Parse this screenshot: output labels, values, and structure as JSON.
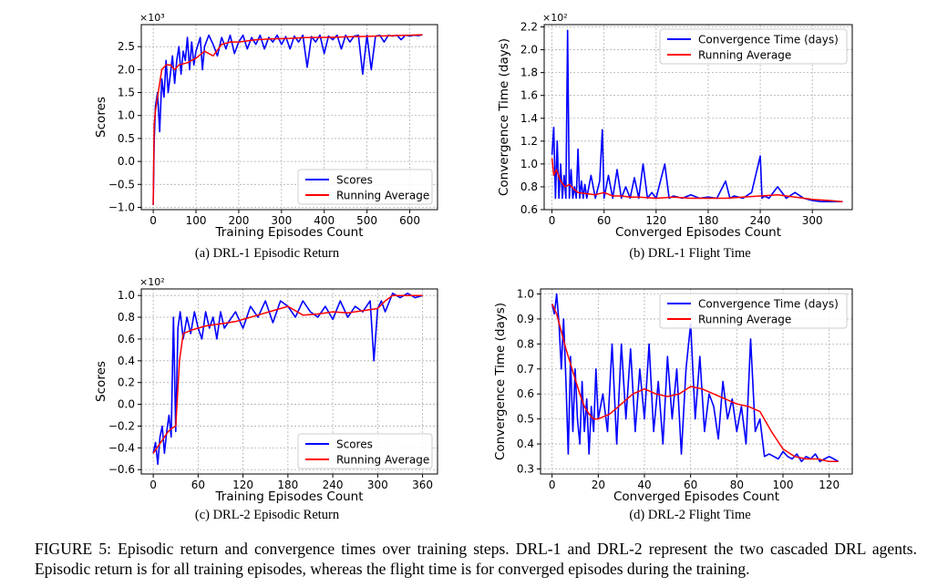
{
  "figure": {
    "caption": "FIGURE 5: Episodic return and convergence times over training steps. DRL-1 and DRL-2 represent the two cascaded DRL agents. Episodic return is for all training episodes, whereas the flight time is for converged episodes during the training."
  },
  "chart_data": [
    {
      "id": "a",
      "type": "line",
      "subcaption": "(a)  DRL-1 Episodic Return",
      "xlabel": "Training Episodes Count",
      "ylabel": "Scores",
      "multiplier": "×10³",
      "xlim": [
        -28,
        665
      ],
      "ylim": [
        -1.05,
        2.98
      ],
      "xticks": [
        0,
        100,
        200,
        300,
        400,
        500,
        600
      ],
      "yticks": [
        -1.0,
        -0.5,
        0.0,
        0.5,
        1.0,
        1.5,
        2.0,
        2.5
      ],
      "ytick_labels": [
        "−1.0",
        "−0.5",
        "0.0",
        "0.5",
        "1.0",
        "1.5",
        "2.0",
        "2.5"
      ],
      "grid": true,
      "legend_position": "bottom-right",
      "series": [
        {
          "name": "Scores",
          "color": "#0000ff",
          "x": [
            0,
            2,
            5,
            10,
            15,
            20,
            25,
            30,
            35,
            40,
            45,
            50,
            55,
            60,
            65,
            70,
            75,
            80,
            85,
            90,
            95,
            100,
            110,
            115,
            120,
            130,
            140,
            150,
            160,
            170,
            180,
            190,
            200,
            210,
            220,
            230,
            240,
            250,
            260,
            270,
            280,
            290,
            300,
            310,
            320,
            330,
            340,
            350,
            360,
            370,
            380,
            390,
            400,
            410,
            420,
            430,
            440,
            450,
            460,
            470,
            480,
            490,
            500,
            510,
            520,
            530,
            540,
            550,
            560,
            570,
            580,
            590,
            600,
            610,
            620,
            630
          ],
          "y": [
            -0.95,
            0.4,
            1.2,
            1.5,
            0.65,
            1.8,
            1.4,
            2.2,
            1.5,
            1.9,
            2.3,
            1.7,
            2.2,
            2.5,
            1.9,
            2.4,
            2.2,
            2.7,
            2.0,
            2.6,
            2.1,
            2.4,
            2.7,
            2.0,
            2.5,
            2.75,
            2.55,
            2.3,
            2.7,
            2.45,
            2.75,
            2.35,
            2.6,
            2.75,
            2.45,
            2.7,
            2.55,
            2.75,
            2.45,
            2.7,
            2.6,
            2.75,
            2.55,
            2.72,
            2.45,
            2.73,
            2.6,
            2.75,
            2.05,
            2.72,
            2.6,
            2.75,
            2.35,
            2.73,
            2.65,
            2.75,
            2.45,
            2.75,
            2.6,
            2.73,
            2.75,
            1.9,
            2.75,
            2.0,
            2.73,
            2.75,
            2.6,
            2.75,
            2.73,
            2.75,
            2.65,
            2.75,
            2.73,
            2.75,
            2.74,
            2.76
          ]
        },
        {
          "name": "Running Average",
          "color": "#ff0000",
          "x": [
            0,
            2,
            5,
            10,
            20,
            30,
            40,
            50,
            60,
            80,
            100,
            120,
            140,
            160,
            180,
            200,
            240,
            280,
            320,
            360,
            400,
            440,
            480,
            520,
            560,
            600,
            630
          ],
          "y": [
            -0.95,
            0.8,
            1.1,
            1.4,
            2.0,
            2.1,
            2.1,
            2.0,
            2.1,
            2.15,
            2.25,
            2.4,
            2.3,
            2.55,
            2.6,
            2.6,
            2.65,
            2.67,
            2.68,
            2.7,
            2.7,
            2.71,
            2.72,
            2.73,
            2.74,
            2.75,
            2.76
          ]
        }
      ]
    },
    {
      "id": "b",
      "type": "line",
      "subcaption": "(b)  DRL-1 Flight Time",
      "xlabel": "Converged Episodes Count",
      "ylabel": "Convergence Time (days)",
      "multiplier": "×10²",
      "xlim": [
        -9,
        346
      ],
      "ylim": [
        0.6,
        2.22
      ],
      "xticks": [
        0,
        60,
        120,
        180,
        240,
        300
      ],
      "yticks": [
        0.6,
        0.8,
        1.0,
        1.2,
        1.4,
        1.6,
        1.8,
        2.0,
        2.2
      ],
      "ytick_labels": [
        "0.6",
        "0.8",
        "1.0",
        "1.2",
        "1.4",
        "1.6",
        "1.8",
        "2.0",
        "2.2"
      ],
      "grid": true,
      "legend_position": "top-right",
      "series": [
        {
          "name": "Convergence Time (days)",
          "color": "#0000ff",
          "x": [
            0,
            2,
            4,
            6,
            8,
            10,
            12,
            14,
            16,
            18,
            20,
            22,
            24,
            26,
            28,
            30,
            32,
            34,
            36,
            38,
            40,
            45,
            50,
            55,
            58,
            60,
            65,
            70,
            75,
            80,
            85,
            90,
            95,
            100,
            105,
            110,
            115,
            120,
            130,
            135,
            140,
            150,
            160,
            170,
            180,
            190,
            200,
            205,
            210,
            220,
            230,
            240,
            242,
            245,
            250,
            260,
            270,
            280,
            290,
            300,
            310,
            320,
            330,
            335
          ],
          "y": [
            1.08,
            1.32,
            0.7,
            1.2,
            0.7,
            1.0,
            0.7,
            0.9,
            0.7,
            2.17,
            0.7,
            0.95,
            0.7,
            0.8,
            0.7,
            1.13,
            0.7,
            0.85,
            0.7,
            0.82,
            0.7,
            0.9,
            0.7,
            0.85,
            1.3,
            0.7,
            0.9,
            0.7,
            0.95,
            0.7,
            0.8,
            0.7,
            0.88,
            0.7,
            1.0,
            0.7,
            0.75,
            0.7,
            1.0,
            0.7,
            0.72,
            0.7,
            0.73,
            0.7,
            0.71,
            0.7,
            0.85,
            0.7,
            0.72,
            0.7,
            0.75,
            1.07,
            0.7,
            0.72,
            0.7,
            0.8,
            0.7,
            0.75,
            0.7,
            0.68,
            0.67,
            0.67,
            0.67,
            0.67
          ]
        },
        {
          "name": "Running Average",
          "color": "#ff0000",
          "x": [
            0,
            2,
            5,
            10,
            15,
            20,
            25,
            30,
            40,
            50,
            60,
            70,
            80,
            90,
            100,
            120,
            140,
            160,
            180,
            200,
            220,
            240,
            260,
            280,
            300,
            320,
            335
          ],
          "y": [
            1.05,
            0.9,
            0.95,
            0.85,
            0.8,
            0.82,
            0.78,
            0.75,
            0.74,
            0.73,
            0.75,
            0.72,
            0.72,
            0.71,
            0.71,
            0.7,
            0.71,
            0.7,
            0.7,
            0.7,
            0.71,
            0.72,
            0.73,
            0.71,
            0.69,
            0.68,
            0.67
          ]
        }
      ]
    },
    {
      "id": "c",
      "type": "line",
      "subcaption": "(c)  DRL-2 Episodic Return",
      "xlabel": "Training Episodes Count",
      "ylabel": "Scores",
      "multiplier": "×10²",
      "xlim": [
        -16,
        380
      ],
      "ylim": [
        -0.64,
        1.06
      ],
      "xticks": [
        0,
        60,
        120,
        180,
        240,
        300,
        360
      ],
      "yticks": [
        -0.6,
        -0.4,
        -0.2,
        0.0,
        0.2,
        0.4,
        0.6,
        0.8,
        1.0
      ],
      "ytick_labels": [
        "−0.6",
        "−0.4",
        "−0.2",
        "0.0",
        "0.2",
        "0.4",
        "0.6",
        "0.8",
        "1.0"
      ],
      "grid": true,
      "legend_position": "bottom-right",
      "series": [
        {
          "name": "Scores",
          "color": "#0000ff",
          "x": [
            0,
            3,
            6,
            9,
            12,
            15,
            18,
            21,
            24,
            27,
            30,
            33,
            36,
            40,
            45,
            50,
            55,
            60,
            65,
            70,
            75,
            80,
            85,
            90,
            95,
            100,
            110,
            120,
            130,
            140,
            150,
            160,
            170,
            180,
            190,
            200,
            210,
            220,
            230,
            240,
            250,
            260,
            270,
            280,
            290,
            295,
            300,
            305,
            310,
            320,
            330,
            340,
            350,
            360
          ],
          "y": [
            -0.45,
            -0.35,
            -0.55,
            -0.3,
            -0.2,
            -0.45,
            -0.25,
            -0.1,
            -0.3,
            0.8,
            -0.25,
            0.7,
            0.85,
            0.6,
            0.8,
            0.65,
            0.85,
            0.7,
            0.6,
            0.85,
            0.7,
            0.8,
            0.6,
            0.85,
            0.7,
            0.75,
            0.85,
            0.7,
            0.9,
            0.8,
            0.95,
            0.75,
            0.95,
            0.9,
            0.8,
            0.95,
            0.85,
            0.8,
            0.9,
            0.78,
            0.95,
            0.8,
            0.9,
            0.85,
            0.95,
            0.4,
            0.88,
            0.95,
            0.85,
            1.02,
            0.98,
            1.02,
            0.98,
            1.0
          ]
        },
        {
          "name": "Running Average",
          "color": "#ff0000",
          "x": [
            0,
            5,
            10,
            15,
            20,
            25,
            30,
            35,
            40,
            50,
            60,
            70,
            80,
            90,
            100,
            110,
            120,
            140,
            160,
            180,
            200,
            220,
            240,
            260,
            280,
            300,
            310,
            320,
            340,
            360
          ],
          "y": [
            -0.45,
            -0.4,
            -0.35,
            -0.3,
            -0.25,
            -0.22,
            -0.2,
            0.4,
            0.65,
            0.68,
            0.7,
            0.72,
            0.73,
            0.74,
            0.75,
            0.76,
            0.78,
            0.82,
            0.86,
            0.9,
            0.82,
            0.83,
            0.85,
            0.84,
            0.86,
            0.88,
            0.95,
            1.0,
            1.0,
            1.0
          ]
        }
      ]
    },
    {
      "id": "d",
      "type": "line",
      "subcaption": "(d)  DRL-2 Flight Time",
      "xlabel": "Converged Episodes Count",
      "ylabel": "Convergence Time (days)",
      "multiplier": "",
      "xlim": [
        -5,
        130
      ],
      "ylim": [
        0.28,
        1.02
      ],
      "xticks": [
        0,
        20,
        40,
        60,
        80,
        100,
        120
      ],
      "yticks": [
        0.3,
        0.4,
        0.5,
        0.6,
        0.7,
        0.8,
        0.9,
        1.0
      ],
      "ytick_labels": [
        "0.3",
        "0.4",
        "0.5",
        "0.6",
        "0.7",
        "0.8",
        "0.9",
        "1.0"
      ],
      "grid": true,
      "legend_position": "top-right",
      "series": [
        {
          "name": "Convergence Time (days)",
          "color": "#0000ff",
          "x": [
            0,
            1,
            2,
            3,
            4,
            5,
            6,
            7,
            8,
            9,
            10,
            11,
            12,
            13,
            14,
            15,
            16,
            17,
            18,
            19,
            20,
            22,
            24,
            26,
            28,
            30,
            32,
            34,
            36,
            38,
            40,
            42,
            44,
            46,
            48,
            50,
            52,
            54,
            56,
            58,
            60,
            62,
            64,
            66,
            68,
            70,
            72,
            74,
            76,
            78,
            80,
            82,
            84,
            86,
            88,
            90,
            92,
            94,
            96,
            98,
            100,
            102,
            104,
            106,
            108,
            110,
            112,
            114,
            116,
            118,
            120,
            122,
            124
          ],
          "y": [
            0.96,
            0.92,
            1.0,
            0.88,
            0.7,
            0.9,
            0.65,
            0.36,
            0.75,
            0.45,
            0.7,
            0.5,
            0.4,
            0.65,
            0.45,
            0.58,
            0.36,
            0.55,
            0.45,
            0.7,
            0.5,
            0.6,
            0.45,
            0.8,
            0.4,
            0.8,
            0.5,
            0.78,
            0.45,
            0.7,
            0.5,
            0.8,
            0.45,
            0.65,
            0.4,
            0.75,
            0.5,
            0.7,
            0.36,
            0.7,
            0.88,
            0.5,
            0.75,
            0.45,
            0.6,
            0.55,
            0.42,
            0.65,
            0.5,
            0.58,
            0.45,
            0.55,
            0.4,
            0.82,
            0.45,
            0.5,
            0.35,
            0.36,
            0.35,
            0.34,
            0.37,
            0.35,
            0.34,
            0.36,
            0.33,
            0.35,
            0.34,
            0.36,
            0.33,
            0.34,
            0.35,
            0.34,
            0.33
          ]
        },
        {
          "name": "Running Average",
          "color": "#ff0000",
          "x": [
            0,
            2,
            4,
            6,
            8,
            10,
            12,
            14,
            16,
            18,
            20,
            25,
            30,
            35,
            40,
            45,
            50,
            55,
            60,
            65,
            70,
            75,
            80,
            85,
            90,
            95,
            100,
            105,
            110,
            115,
            120,
            124
          ],
          "y": [
            0.96,
            0.92,
            0.85,
            0.78,
            0.72,
            0.66,
            0.6,
            0.55,
            0.52,
            0.5,
            0.5,
            0.52,
            0.56,
            0.6,
            0.62,
            0.6,
            0.59,
            0.6,
            0.63,
            0.62,
            0.6,
            0.58,
            0.56,
            0.55,
            0.53,
            0.45,
            0.38,
            0.35,
            0.34,
            0.34,
            0.33,
            0.33
          ]
        }
      ]
    }
  ]
}
